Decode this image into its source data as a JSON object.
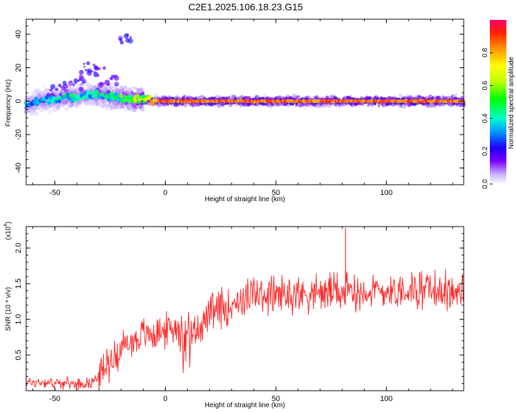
{
  "title": "C2E1.2025.106.18.23.G15",
  "chart_data": [
    {
      "type": "heatmap",
      "xlabel": "Height of straight line (km)",
      "ylabel": "Frequency (Hz)",
      "xlim": [
        -63,
        135
      ],
      "ylim": [
        -50,
        49
      ],
      "xticks": [
        -50,
        0,
        50,
        100
      ],
      "yticks": [
        -40,
        -20,
        0,
        20,
        40
      ],
      "colorbar": {
        "label": "Normalized spectral amplitude",
        "range": [
          0,
          1
        ],
        "ticks": [
          0.0,
          0.2,
          0.4,
          0.6,
          0.8
        ]
      },
      "ridge": [
        {
          "x": -62,
          "f": -2,
          "a": 0.35
        },
        {
          "x": -57,
          "f": 0,
          "a": 0.35
        },
        {
          "x": -52,
          "f": 1,
          "a": 0.35
        },
        {
          "x": -47,
          "f": 2,
          "a": 0.4
        },
        {
          "x": -42,
          "f": 2,
          "a": 0.4
        },
        {
          "x": -37,
          "f": 4,
          "a": 0.35
        },
        {
          "x": -32,
          "f": 4,
          "a": 0.4
        },
        {
          "x": -27,
          "f": 3,
          "a": 0.4
        },
        {
          "x": -22,
          "f": 2,
          "a": 0.45
        },
        {
          "x": -17,
          "f": 1.5,
          "a": 0.55
        },
        {
          "x": -12,
          "f": 1,
          "a": 0.6
        },
        {
          "x": -7,
          "f": 0.5,
          "a": 0.75
        },
        {
          "x": -2,
          "f": 0,
          "a": 0.9
        },
        {
          "x": 10,
          "f": 0,
          "a": 0.9
        },
        {
          "x": 40,
          "f": 0,
          "a": 0.9
        },
        {
          "x": 70,
          "f": 0,
          "a": 0.9
        },
        {
          "x": 100,
          "f": 0,
          "a": 0.9
        },
        {
          "x": 135,
          "f": 0,
          "a": 0.9
        }
      ]
    },
    {
      "type": "line",
      "xlabel": "Height of straight line (km)",
      "ylabel": "SNR (10 * v/v)",
      "y_multiplier": "(x10",
      "y_multiplier_exp": "4",
      "y_multiplier_close": ")",
      "xlim": [
        -63,
        135
      ],
      "ylim": [
        0,
        2.3
      ],
      "xticks": [
        -50,
        0,
        50,
        100
      ],
      "yticks": [
        0.5,
        1.0,
        1.5,
        2.0
      ],
      "ytick_labels": [
        "0.5",
        "1.0",
        "1.5",
        "2.0"
      ],
      "color": "#ff2a2a",
      "series": [
        {
          "x": [
            -63,
            -55,
            -45,
            -38,
            -33,
            -28,
            -20,
            -10,
            -2,
            5,
            10,
            18,
            25,
            35,
            45,
            55,
            70,
            85,
            100,
            115,
            125,
            135
          ],
          "y": [
            0.12,
            0.12,
            0.1,
            0.1,
            0.12,
            0.3,
            0.6,
            0.78,
            0.82,
            0.9,
            0.72,
            1.0,
            1.15,
            1.3,
            1.35,
            1.35,
            1.38,
            1.4,
            1.4,
            1.42,
            1.4,
            1.38
          ]
        }
      ],
      "spike": {
        "x": 81.5,
        "y": 2.28
      }
    }
  ]
}
